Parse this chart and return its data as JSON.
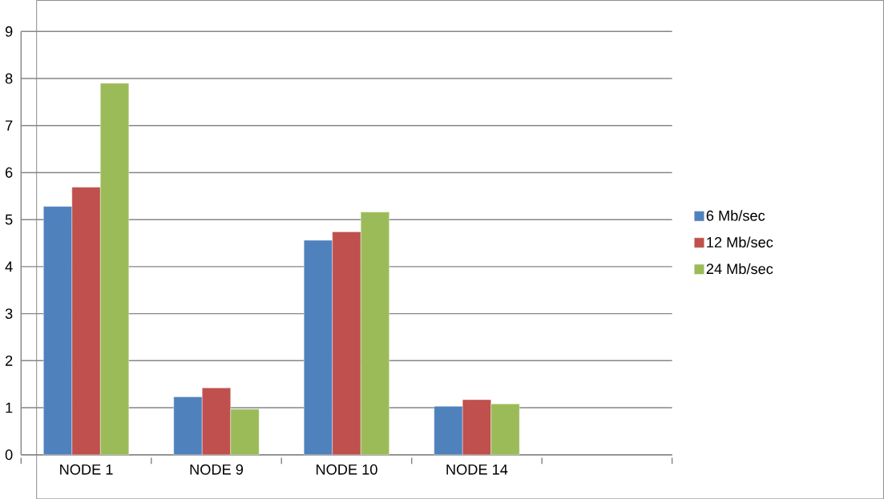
{
  "chart_data": {
    "type": "bar",
    "categories": [
      "NODE 1",
      "NODE 9",
      "NODE 10",
      "NODE 14",
      null
    ],
    "series": [
      {
        "name": "6 Mb/sec",
        "color": "#4f81bd",
        "values": [
          5.28,
          1.23,
          4.56,
          1.03,
          null
        ]
      },
      {
        "name": "12 Mb/sec",
        "color": "#c0504d",
        "values": [
          5.69,
          1.42,
          4.74,
          1.17,
          null
        ]
      },
      {
        "name": "24 Mb/sec",
        "color": "#9bbb59",
        "values": [
          7.9,
          0.97,
          5.16,
          1.08,
          null
        ]
      }
    ],
    "ylim": [
      0,
      9
    ],
    "yticks": [
      0,
      1,
      2,
      3,
      4,
      5,
      6,
      7,
      8,
      9
    ],
    "grid": "y",
    "legend": "right"
  }
}
